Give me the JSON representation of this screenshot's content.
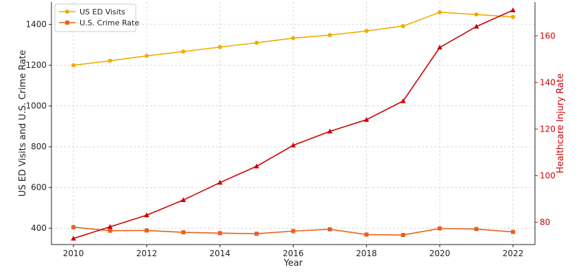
{
  "chart_data": {
    "type": "line",
    "title": "",
    "xlabel": "Year",
    "ylabel_left": "US ED Visits and U.S. Crime Rate",
    "ylabel_right": "Healthcare Injury Rate",
    "x": [
      2010,
      2011,
      2012,
      2013,
      2014,
      2015,
      2016,
      2017,
      2018,
      2019,
      2020,
      2021,
      2022
    ],
    "x_ticks": [
      2010,
      2012,
      2014,
      2016,
      2018,
      2020,
      2022
    ],
    "xlim": [
      2009.4,
      2022.6
    ],
    "ylim_left": [
      320,
      1510
    ],
    "ylim_right": [
      70.4,
      174.5
    ],
    "yticks_left": [
      400,
      600,
      800,
      1000,
      1200,
      1400
    ],
    "yticks_right": [
      80,
      100,
      120,
      140,
      160
    ],
    "grid": true,
    "legend_position": "top-left",
    "colors": {
      "us_ed_visits": "#f2a900",
      "crime_rate": "#e8601c",
      "injury_rate": "#cc0000",
      "axis_right": "#cc0000",
      "axis_left": "#222222",
      "grid": "#cfcfcf"
    },
    "series": [
      {
        "name": "US ED Visits",
        "axis": "left",
        "marker": "circle",
        "color_key": "us_ed_visits",
        "values": [
          1200,
          1222,
          1246,
          1267,
          1289,
          1310,
          1333,
          1348,
          1368,
          1392,
          1460,
          1449,
          1437
        ]
      },
      {
        "name": "U.S. Crime Rate",
        "axis": "left",
        "marker": "square",
        "color_key": "crime_rate",
        "values": [
          405,
          388,
          389,
          380,
          376,
          373,
          386,
          395,
          369,
          367,
          399,
          396,
          382
        ]
      },
      {
        "axis": "right",
        "marker": "triangle",
        "color_key": "injury_rate",
        "values": [
          73,
          78,
          83,
          89.5,
          97,
          104,
          113,
          119,
          124,
          132,
          155,
          164,
          171
        ]
      }
    ]
  }
}
